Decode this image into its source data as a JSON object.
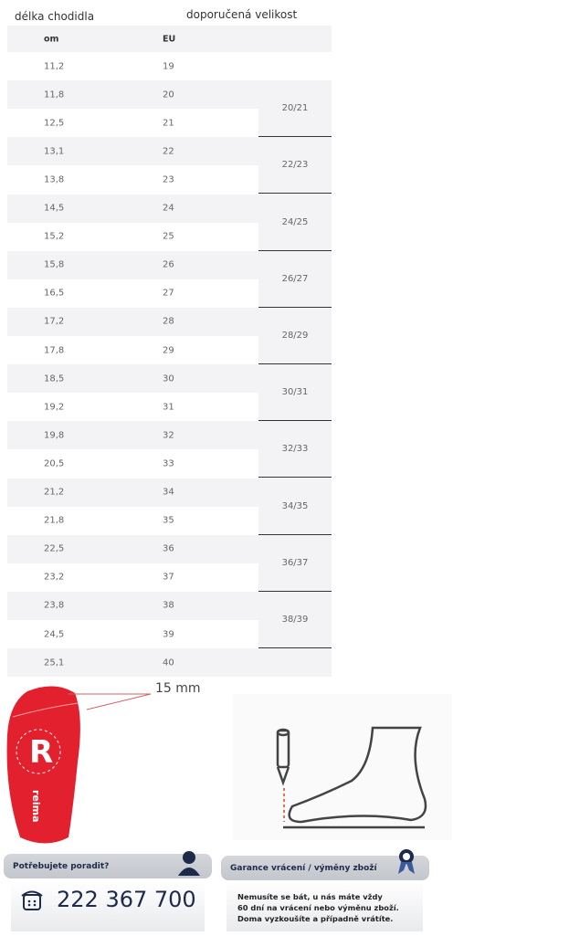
{
  "headings": {
    "foot_length": "délka chodidla",
    "recommended_size": "doporučená velikost"
  },
  "table": {
    "columns": [
      "om",
      "EU"
    ],
    "rows": [
      {
        "cm": "11,2",
        "eu": "19"
      },
      {
        "cm": "11,8",
        "eu": "20"
      },
      {
        "cm": "12,5",
        "eu": "21"
      },
      {
        "cm": "13,1",
        "eu": "22"
      },
      {
        "cm": "13,8",
        "eu": "23"
      },
      {
        "cm": "14,5",
        "eu": "24"
      },
      {
        "cm": "15,2",
        "eu": "25"
      },
      {
        "cm": "15,8",
        "eu": "26"
      },
      {
        "cm": "16,5",
        "eu": "27"
      },
      {
        "cm": "17,2",
        "eu": "28"
      },
      {
        "cm": "17,8",
        "eu": "29"
      },
      {
        "cm": "18,5",
        "eu": "30"
      },
      {
        "cm": "19,2",
        "eu": "31"
      },
      {
        "cm": "19,8",
        "eu": "32"
      },
      {
        "cm": "20,5",
        "eu": "33"
      },
      {
        "cm": "21,2",
        "eu": "34"
      },
      {
        "cm": "21,8",
        "eu": "35"
      },
      {
        "cm": "22,5",
        "eu": "36"
      },
      {
        "cm": "23,2",
        "eu": "37"
      },
      {
        "cm": "23,8",
        "eu": "38"
      },
      {
        "cm": "24,5",
        "eu": "39"
      },
      {
        "cm": "25,1",
        "eu": "40"
      }
    ],
    "recommended": [
      "20/21",
      "22/23",
      "24/25",
      "26/27",
      "28/29",
      "30/31",
      "32/33",
      "34/35",
      "36/37",
      "38/39"
    ]
  },
  "insole": {
    "measure_label": "15 mm",
    "logo_text": "reima"
  },
  "support": {
    "title": "Potřebujete poradit?",
    "phone": "222 367 700"
  },
  "returns": {
    "title": "Garance vrácení / výměny zboží",
    "lines": [
      "Nemusíte se bát, u nás máte vždy",
      "60 dní na vrácení nebo výměnu zboží.",
      "Doma vyzkoušíte a případně vrátíte."
    ]
  },
  "colors": {
    "insole": "#e3202e",
    "header_bar": "#c8cad0",
    "text_dark": "#1e2a4a"
  }
}
